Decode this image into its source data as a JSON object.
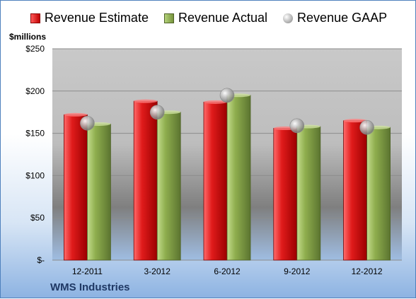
{
  "company": "WMS Industries",
  "chart_data": {
    "type": "bar",
    "ylabel": "$millions",
    "ylim": [
      0,
      250
    ],
    "yticks": [
      {
        "value": 0,
        "label": "$-"
      },
      {
        "value": 50,
        "label": "$50"
      },
      {
        "value": 100,
        "label": "$100"
      },
      {
        "value": 150,
        "label": "$150"
      },
      {
        "value": 200,
        "label": "$200"
      },
      {
        "value": 250,
        "label": "$250"
      }
    ],
    "categories": [
      "12-2011",
      "3-2012",
      "6-2012",
      "9-2012",
      "12-2012"
    ],
    "series": [
      {
        "name": "Revenue Estimate",
        "kind": "bar",
        "color": "#c00000",
        "values": [
          172,
          188,
          187,
          156,
          165
        ]
      },
      {
        "name": "Revenue Actual",
        "kind": "bar",
        "color": "#76933c",
        "values": [
          161,
          175,
          195,
          158,
          157
        ]
      },
      {
        "name": "Revenue GAAP",
        "kind": "marker",
        "color": "#a6a6a6",
        "values": [
          162,
          175,
          195,
          159,
          157
        ]
      }
    ],
    "legend_position": "top",
    "grid": true
  }
}
